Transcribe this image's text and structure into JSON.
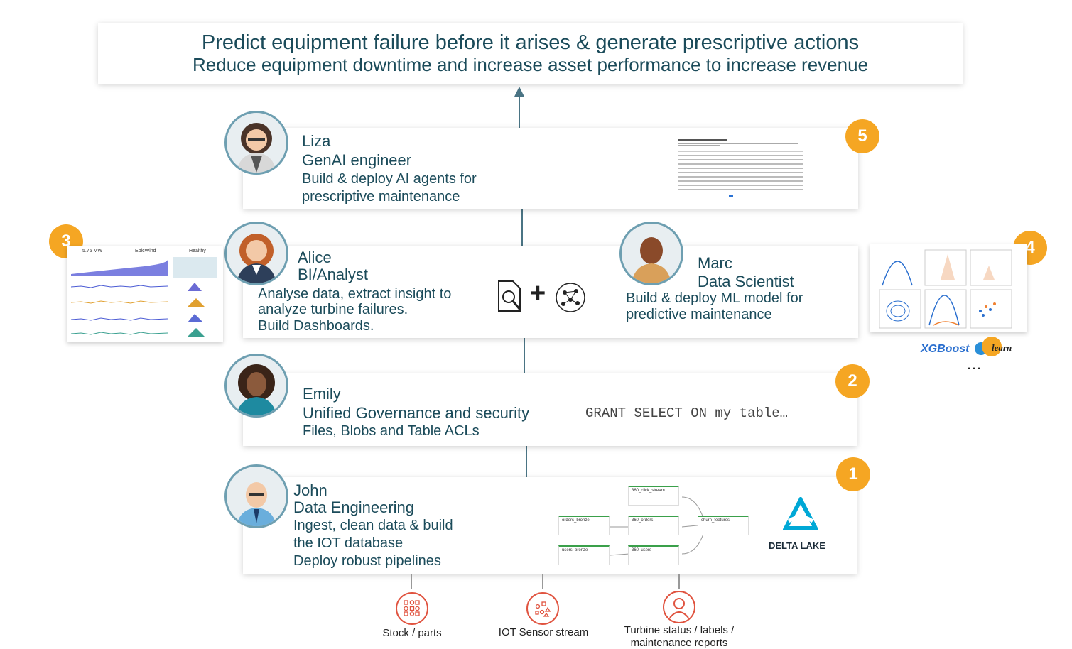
{
  "header": {
    "title": "Predict equipment failure before it arises  & generate prescriptive actions",
    "subtitle": "Reduce equipment downtime and increase asset performance to increase revenue"
  },
  "personas": {
    "liza": {
      "name": "Liza",
      "role": "GenAI engineer",
      "desc1": "Build & deploy AI agents for",
      "desc2": "prescriptive maintenance",
      "badge": "5"
    },
    "alice": {
      "name": "Alice",
      "role": "BI/Analyst",
      "desc1": "Analyse data, extract insight to",
      "desc2": "analyze turbine failures.",
      "desc3": "Build Dashboards.",
      "badge": "3"
    },
    "marc": {
      "name": "Marc",
      "role": "Data Scientist",
      "desc1": "Build & deploy ML model for",
      "desc2": "predictive maintenance",
      "badge": "4"
    },
    "emily": {
      "name": "Emily",
      "role": "Unified Governance and security",
      "desc1": "Files, Blobs and Table ACLs",
      "code": "GRANT SELECT ON my_table…",
      "badge": "2"
    },
    "john": {
      "name": "John",
      "role": "Data Engineering",
      "desc1": "Ingest, clean data & build",
      "desc2": "the IOT database",
      "desc3": "Deploy robust pipelines",
      "badge": "1"
    }
  },
  "dashboard": {
    "value": "5.75 MW",
    "brand": "EpicWind",
    "status": "Healthy"
  },
  "ml_libs": {
    "xgboost": "XGBoost",
    "sklearn": "learn",
    "ellipsis": "…"
  },
  "delta": {
    "label": "DELTA LAKE"
  },
  "pipeline_nodes": [
    "360_click_stream",
    "orders_bronze",
    "360_orders",
    "churn_features",
    "users_bronze",
    "360_users"
  ],
  "sources": [
    {
      "label": "Stock / parts",
      "icon": "parts-grid-icon"
    },
    {
      "label": "IOT Sensor stream",
      "icon": "sensor-stream-icon"
    },
    {
      "label": "Turbine status / labels /",
      "label2": "maintenance reports",
      "icon": "user-icon"
    }
  ],
  "colors": {
    "accent": "#f5a623",
    "text": "#1b4b5a",
    "source": "#e0533f"
  }
}
